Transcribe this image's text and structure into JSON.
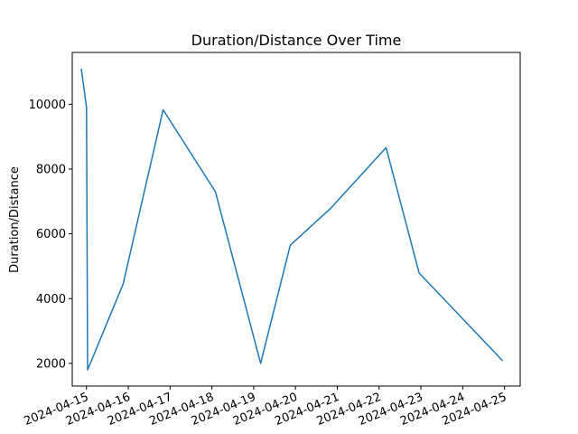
{
  "chart_data": {
    "type": "line",
    "title": "Duration/Distance Over Time",
    "xlabel": "",
    "ylabel": "Duration/Distance",
    "x_ticks": [
      "2024-04-15",
      "2024-04-16",
      "2024-04-17",
      "2024-04-18",
      "2024-04-19",
      "2024-04-20",
      "2024-04-21",
      "2024-04-22",
      "2024-04-23",
      "2024-04-24",
      "2024-04-25"
    ],
    "y_ticks": [
      2000,
      4000,
      6000,
      8000,
      10000
    ],
    "ylim": [
      1300,
      11600
    ],
    "xlim": [
      "2024-04-14T15:50",
      "2024-04-25T09:00"
    ],
    "grid": false,
    "series": [
      {
        "color": "#1f77b4",
        "points": [
          {
            "x": "2024-04-14T21:00",
            "y": 11100
          },
          {
            "x": "2024-04-15T00:00",
            "y": 9900
          },
          {
            "x": "2024-04-15T00:40",
            "y": 1800
          },
          {
            "x": "2024-04-15T21:00",
            "y": 4450
          },
          {
            "x": "2024-04-16T20:00",
            "y": 9830
          },
          {
            "x": "2024-04-18T02:00",
            "y": 7300
          },
          {
            "x": "2024-04-19T04:00",
            "y": 2000
          },
          {
            "x": "2024-04-19T21:00",
            "y": 5650
          },
          {
            "x": "2024-04-20T20:00",
            "y": 6780
          },
          {
            "x": "2024-04-22T04:00",
            "y": 8660
          },
          {
            "x": "2024-04-22T23:00",
            "y": 4790
          },
          {
            "x": "2024-04-24T23:00",
            "y": 2080
          }
        ]
      }
    ]
  }
}
